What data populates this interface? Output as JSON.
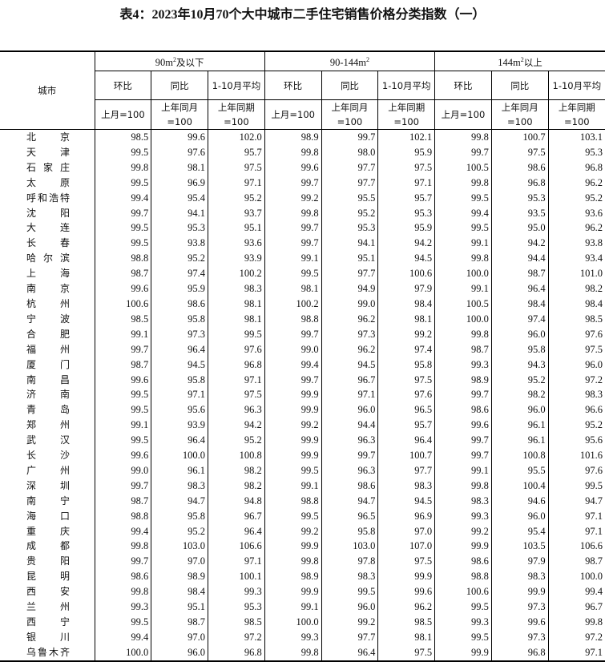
{
  "title": "表4：2023年10月70个大中城市二手住宅销售价格分类指数（一）",
  "header": {
    "city": "城市",
    "groups": [
      {
        "base": "90m",
        "sup": "2",
        "suffix": "及以下"
      },
      {
        "base": "90-144m",
        "sup": "2",
        "suffix": ""
      },
      {
        "base": "144m",
        "sup": "2",
        "suffix": "以上"
      }
    ],
    "sub": [
      "环比",
      "同比",
      "1-10月平均"
    ],
    "base": [
      "上月=100",
      "上年同月=100",
      "上年同期=100"
    ]
  },
  "rows": [
    [
      "北京",
      98.5,
      99.6,
      102.0,
      98.9,
      99.7,
      102.1,
      99.8,
      100.7,
      103.1
    ],
    [
      "天津",
      99.5,
      97.6,
      95.7,
      99.8,
      98.0,
      95.9,
      99.7,
      97.5,
      95.3
    ],
    [
      "石家庄",
      99.8,
      98.1,
      97.5,
      99.6,
      97.7,
      97.5,
      100.5,
      98.6,
      96.8
    ],
    [
      "太原",
      99.5,
      96.9,
      97.1,
      99.7,
      97.7,
      97.1,
      99.8,
      96.8,
      96.2
    ],
    [
      "呼和浩特",
      99.4,
      95.4,
      95.2,
      99.2,
      95.5,
      95.7,
      99.5,
      95.3,
      95.2
    ],
    [
      "沈阳",
      99.7,
      94.1,
      93.7,
      99.8,
      95.2,
      95.3,
      99.4,
      93.5,
      93.6
    ],
    [
      "大连",
      99.5,
      95.3,
      95.1,
      99.7,
      95.3,
      95.9,
      99.5,
      95.0,
      96.2
    ],
    [
      "长春",
      99.5,
      93.8,
      93.6,
      99.7,
      94.1,
      94.2,
      99.1,
      94.2,
      93.8
    ],
    [
      "哈尔滨",
      98.8,
      95.2,
      93.9,
      99.1,
      95.1,
      94.5,
      99.8,
      94.4,
      93.4
    ],
    [
      "上海",
      98.7,
      97.4,
      100.2,
      99.5,
      97.7,
      100.6,
      100.0,
      98.7,
      101.0
    ],
    [
      "南京",
      99.6,
      95.9,
      98.3,
      98.1,
      94.9,
      97.9,
      99.1,
      96.4,
      98.2
    ],
    [
      "杭州",
      100.6,
      98.6,
      98.1,
      100.2,
      99.0,
      98.4,
      100.5,
      98.4,
      98.4
    ],
    [
      "宁波",
      98.5,
      95.8,
      98.1,
      98.8,
      96.2,
      98.1,
      100.0,
      97.4,
      98.5
    ],
    [
      "合肥",
      99.1,
      97.3,
      99.5,
      99.7,
      97.3,
      99.2,
      99.8,
      96.0,
      97.6
    ],
    [
      "福州",
      99.7,
      96.4,
      97.6,
      99.0,
      96.2,
      97.4,
      98.7,
      95.8,
      97.5
    ],
    [
      "厦门",
      98.7,
      94.5,
      96.8,
      99.4,
      94.5,
      95.8,
      99.3,
      94.3,
      96.0
    ],
    [
      "南昌",
      99.6,
      95.8,
      97.1,
      99.7,
      96.7,
      97.5,
      98.9,
      95.2,
      97.2
    ],
    [
      "济南",
      99.5,
      97.1,
      97.5,
      99.9,
      97.1,
      97.6,
      99.7,
      98.2,
      98.3
    ],
    [
      "青岛",
      99.5,
      95.6,
      96.3,
      99.9,
      96.0,
      96.5,
      98.6,
      96.0,
      96.6
    ],
    [
      "郑州",
      99.1,
      93.9,
      94.2,
      99.2,
      94.4,
      95.7,
      99.6,
      96.1,
      95.2
    ],
    [
      "武汉",
      99.5,
      96.4,
      95.2,
      99.9,
      96.3,
      96.4,
      99.7,
      96.1,
      95.6
    ],
    [
      "长沙",
      99.6,
      100.0,
      100.8,
      99.9,
      99.7,
      100.7,
      99.7,
      100.8,
      101.6
    ],
    [
      "广州",
      99.0,
      96.1,
      98.2,
      99.5,
      96.3,
      97.7,
      99.1,
      95.5,
      97.6
    ],
    [
      "深圳",
      99.7,
      98.3,
      98.2,
      99.1,
      98.6,
      98.3,
      99.8,
      100.4,
      99.5
    ],
    [
      "南宁",
      98.7,
      94.7,
      94.8,
      98.8,
      94.7,
      94.5,
      98.3,
      94.6,
      94.7
    ],
    [
      "海口",
      98.8,
      95.8,
      96.7,
      99.5,
      96.5,
      96.9,
      99.3,
      96.0,
      97.1
    ],
    [
      "重庆",
      99.4,
      95.2,
      96.4,
      99.2,
      95.8,
      97.0,
      99.2,
      95.4,
      97.1
    ],
    [
      "成都",
      99.8,
      103.0,
      106.6,
      99.9,
      103.0,
      107.0,
      99.9,
      103.5,
      106.6
    ],
    [
      "贵阳",
      99.7,
      97.0,
      97.1,
      99.8,
      97.8,
      97.5,
      98.6,
      97.9,
      98.7
    ],
    [
      "昆明",
      98.6,
      98.9,
      100.1,
      98.9,
      98.3,
      99.9,
      98.8,
      98.3,
      100.0
    ],
    [
      "西安",
      99.8,
      98.4,
      99.3,
      99.9,
      99.5,
      99.6,
      100.6,
      99.9,
      99.4
    ],
    [
      "兰州",
      99.3,
      95.1,
      95.3,
      99.1,
      96.0,
      96.2,
      99.5,
      97.3,
      96.7
    ],
    [
      "西宁",
      99.5,
      98.7,
      98.5,
      100.0,
      99.2,
      98.5,
      99.3,
      99.6,
      99.8
    ],
    [
      "银川",
      99.4,
      97.0,
      97.2,
      99.3,
      97.7,
      98.1,
      99.5,
      97.3,
      97.2
    ],
    [
      "乌鲁木齐",
      100.0,
      96.0,
      96.8,
      99.8,
      96.4,
      97.5,
      99.9,
      96.8,
      97.1
    ]
  ]
}
